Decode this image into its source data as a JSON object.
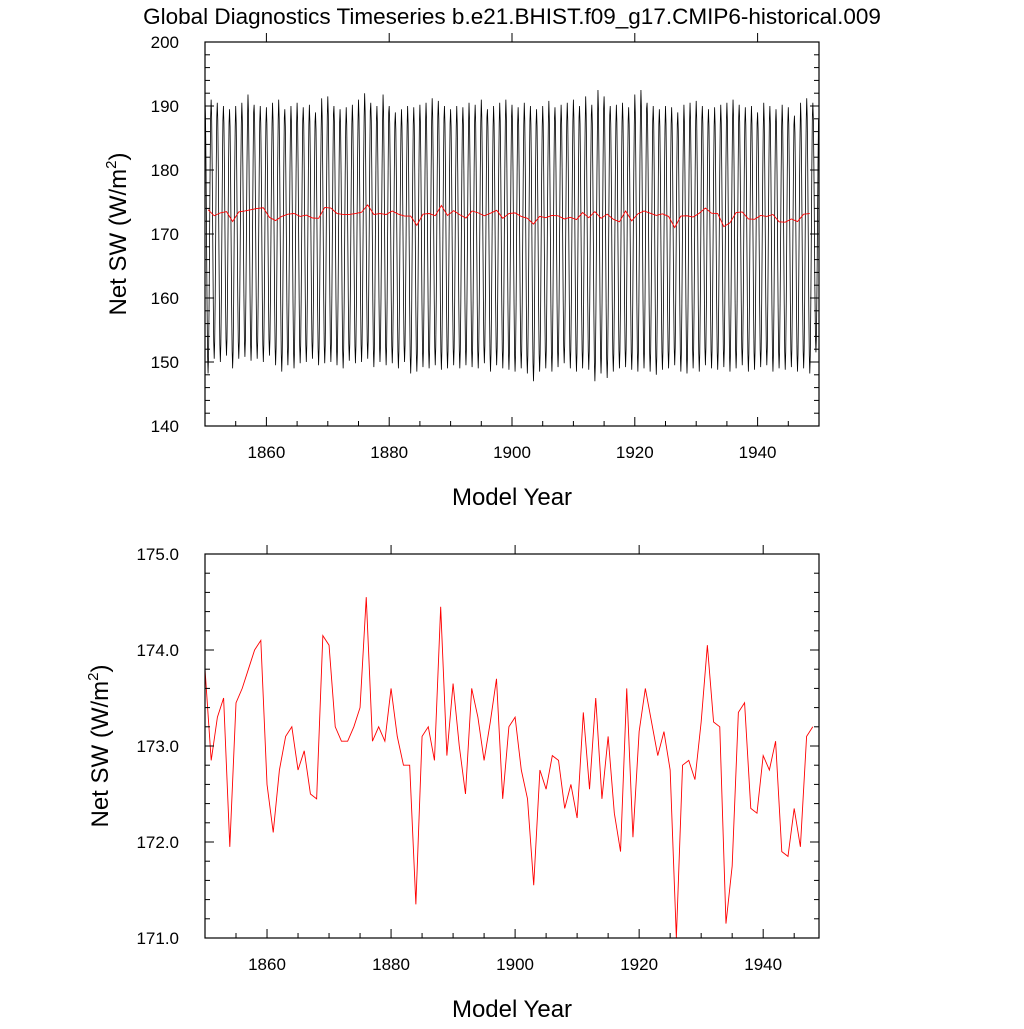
{
  "figure": {
    "title": "Global Diagnostics Timeseries b.e21.BHIST.f09_g17.CMIP6-historical.009"
  },
  "chart_data": [
    {
      "type": "line",
      "xlabel": "Model Year",
      "ylabel_main": "Net SW (W/m",
      "ylabel_sup": "2",
      "ylabel_tail": ")",
      "xlim": [
        1850,
        1950
      ],
      "ylim": [
        140,
        200
      ],
      "xticks": [
        1860,
        1880,
        1900,
        1920,
        1940
      ],
      "yticks": [
        140,
        150,
        160,
        170,
        180,
        190,
        200
      ],
      "ytick_labels": [
        "140",
        "150",
        "160",
        "170",
        "180",
        "190",
        "200"
      ],
      "monthly_cycle": {
        "description_of_series": "monthly values",
        "color": "#000000",
        "annual_max": [
          191.2,
          191.0,
          190.5,
          190.0,
          189.5,
          190.0,
          190.5,
          191.8,
          190.2,
          190.0,
          189.8,
          190.5,
          191.0,
          189.5,
          190.0,
          190.5,
          189.8,
          190.2,
          189.0,
          191.2,
          191.5,
          190.0,
          189.5,
          189.8,
          190.2,
          191.0,
          192.0,
          190.5,
          190.0,
          191.8,
          190.0,
          189.0,
          189.5,
          190.0,
          189.8,
          190.2,
          190.5,
          191.2,
          190.8,
          190.0,
          189.5,
          190.0,
          189.8,
          190.5,
          190.2,
          191.0,
          189.5,
          190.0,
          190.5,
          191.0,
          190.2,
          189.8,
          190.5,
          190.0,
          189.5,
          190.0,
          190.8,
          189.8,
          190.2,
          190.5,
          191.0,
          190.0,
          191.5,
          190.2,
          192.5,
          191.5,
          190.0,
          190.2,
          190.5,
          189.8,
          191.8,
          192.5,
          190.5,
          190.0,
          189.5,
          190.0,
          189.8,
          189.0,
          190.2,
          190.5,
          190.8,
          190.0,
          189.5,
          189.8,
          190.2,
          190.5,
          191.0,
          190.2,
          189.8,
          190.0,
          189.0,
          190.5,
          190.0,
          189.5,
          190.2,
          189.8,
          188.5,
          190.5,
          191.2,
          190.5
        ],
        "annual_min": [
          148.2,
          150.5,
          150.0,
          151.0,
          149.0,
          150.5,
          150.8,
          150.2,
          150.5,
          150.0,
          151.0,
          149.5,
          148.5,
          149.5,
          149.0,
          149.8,
          150.0,
          150.5,
          149.5,
          149.8,
          150.0,
          149.5,
          149.0,
          150.2,
          149.8,
          150.0,
          150.5,
          149.2,
          150.0,
          149.5,
          149.8,
          149.0,
          150.0,
          148.2,
          148.5,
          149.2,
          149.0,
          149.5,
          148.8,
          149.0,
          149.5,
          149.0,
          149.5,
          149.2,
          149.0,
          149.8,
          148.5,
          149.5,
          149.0,
          148.8,
          148.5,
          149.0,
          148.2,
          147.0,
          148.5,
          149.0,
          148.5,
          149.2,
          149.8,
          149.0,
          148.5,
          149.0,
          148.8,
          147.0,
          148.2,
          147.5,
          148.5,
          149.0,
          149.2,
          148.8,
          148.5,
          149.0,
          148.5,
          148.0,
          148.8,
          149.0,
          149.5,
          148.5,
          148.2,
          149.0,
          148.5,
          149.5,
          149.0,
          148.8,
          149.2,
          148.5,
          149.0,
          149.5,
          148.5,
          148.8,
          149.2,
          149.5,
          148.5,
          149.0,
          148.8,
          149.2,
          148.5,
          149.0,
          148.2,
          151.5
        ]
      },
      "annual_mean": {
        "color": "#ff0000"
      }
    },
    {
      "type": "line",
      "xlabel": "Model Year",
      "ylabel_main": "Net SW (W/m",
      "ylabel_sup": "2",
      "ylabel_tail": ")",
      "xlim": [
        1850,
        1949
      ],
      "ylim": [
        171.0,
        175.0
      ],
      "xticks": [
        1860,
        1880,
        1900,
        1920,
        1940
      ],
      "yticks": [
        171.0,
        172.0,
        173.0,
        174.0,
        175.0
      ],
      "ytick_labels": [
        "171.0",
        "172.0",
        "173.0",
        "174.0",
        "175.0"
      ],
      "series": [
        {
          "color": "#ff0000",
          "x_start": 1850,
          "x_step": 1,
          "values": [
            173.8,
            172.85,
            173.3,
            173.5,
            171.95,
            173.45,
            173.6,
            173.8,
            174.0,
            174.1,
            172.6,
            172.1,
            172.75,
            173.1,
            173.2,
            172.75,
            172.95,
            172.5,
            172.45,
            174.15,
            174.05,
            173.2,
            173.05,
            173.05,
            173.2,
            173.4,
            174.55,
            173.05,
            173.2,
            173.05,
            173.6,
            173.1,
            172.8,
            172.8,
            171.35,
            173.1,
            173.2,
            172.85,
            174.45,
            172.9,
            173.65,
            173.0,
            172.5,
            173.6,
            173.3,
            172.85,
            173.25,
            173.7,
            172.45,
            173.2,
            173.3,
            172.75,
            172.45,
            171.55,
            172.75,
            172.55,
            172.9,
            172.85,
            172.35,
            172.6,
            172.25,
            173.35,
            172.55,
            173.5,
            172.45,
            173.1,
            172.3,
            171.9,
            173.6,
            172.05,
            173.15,
            173.6,
            173.25,
            172.9,
            173.15,
            172.75,
            171.0,
            172.8,
            172.85,
            172.65,
            173.25,
            174.05,
            173.25,
            173.2,
            171.15,
            171.75,
            173.35,
            173.45,
            172.35,
            172.3,
            172.9,
            172.75,
            173.05,
            171.9,
            171.85,
            172.35,
            171.95,
            173.1,
            173.2
          ]
        }
      ]
    }
  ]
}
